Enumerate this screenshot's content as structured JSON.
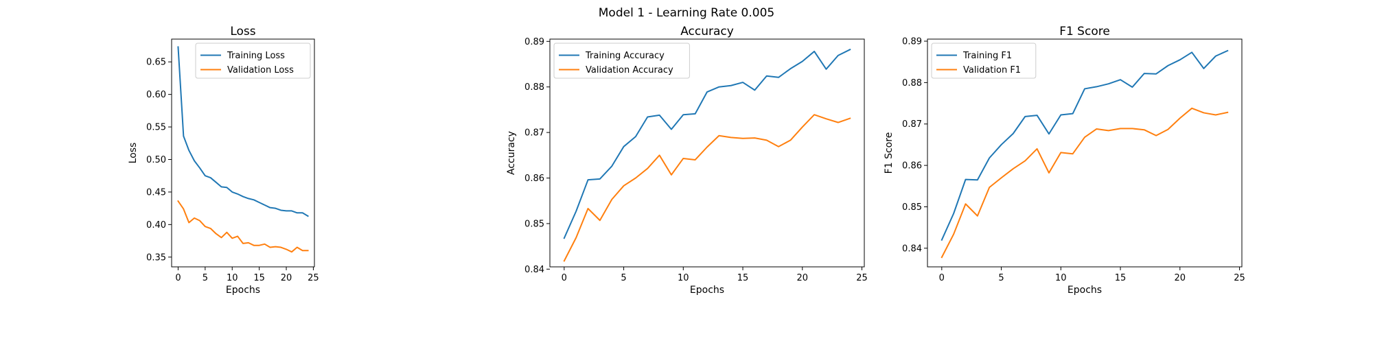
{
  "figure": {
    "suptitle": "Model 1 - Learning Rate 0.005"
  },
  "colors": {
    "training": "#1f77b4",
    "validation": "#ff7f0e",
    "axis": "#000000",
    "legend_border": "#cccccc"
  },
  "chart_data": [
    {
      "type": "line",
      "title": "Loss",
      "xlabel": "Epochs",
      "ylabel": "Loss",
      "xlim": [
        -1.2,
        25.2
      ],
      "ylim": [
        0.335,
        0.685
      ],
      "xticks": [
        0,
        5,
        10,
        15,
        20,
        25
      ],
      "yticks": [
        0.35,
        0.4,
        0.45,
        0.5,
        0.55,
        0.6,
        0.65
      ],
      "ytick_labels": [
        "0.35",
        "0.40",
        "0.45",
        "0.50",
        "0.55",
        "0.60",
        "0.65"
      ],
      "grid": false,
      "legend_position": "upper right",
      "x": [
        0,
        1,
        2,
        3,
        4,
        5,
        6,
        7,
        8,
        9,
        10,
        11,
        12,
        13,
        14,
        15,
        16,
        17,
        18,
        19,
        20,
        21,
        22,
        23,
        24
      ],
      "series": [
        {
          "name": "Training Loss",
          "color_key": "training",
          "values": [
            0.673,
            0.536,
            0.514,
            0.498,
            0.487,
            0.475,
            0.472,
            0.465,
            0.458,
            0.457,
            0.45,
            0.447,
            0.443,
            0.44,
            0.438,
            0.434,
            0.43,
            0.426,
            0.425,
            0.422,
            0.421,
            0.421,
            0.418,
            0.418,
            0.413
          ]
        },
        {
          "name": "Validation Loss",
          "color_key": "validation",
          "values": [
            0.436,
            0.424,
            0.403,
            0.41,
            0.406,
            0.397,
            0.394,
            0.386,
            0.38,
            0.388,
            0.379,
            0.382,
            0.371,
            0.372,
            0.368,
            0.368,
            0.37,
            0.365,
            0.366,
            0.365,
            0.362,
            0.358,
            0.365,
            0.36,
            0.36
          ]
        }
      ]
    },
    {
      "type": "line",
      "title": "Accuracy",
      "xlabel": "Epochs",
      "ylabel": "Accuracy",
      "xlim": [
        -1.2,
        25.2
      ],
      "ylim": [
        0.8405,
        0.8905
      ],
      "xticks": [
        0,
        5,
        10,
        15,
        20,
        25
      ],
      "yticks": [
        0.84,
        0.85,
        0.86,
        0.87,
        0.88,
        0.89
      ],
      "ytick_labels": [
        "0.84",
        "0.85",
        "0.86",
        "0.87",
        "0.88",
        "0.89"
      ],
      "grid": false,
      "legend_position": "upper left",
      "x": [
        0,
        1,
        2,
        3,
        4,
        5,
        6,
        7,
        8,
        9,
        10,
        11,
        12,
        13,
        14,
        15,
        16,
        17,
        18,
        19,
        20,
        21,
        22,
        23,
        24
      ],
      "series": [
        {
          "name": "Training Accuracy",
          "color_key": "training",
          "values": [
            0.8468,
            0.8527,
            0.8596,
            0.8598,
            0.8626,
            0.8669,
            0.8691,
            0.8734,
            0.8738,
            0.8707,
            0.8739,
            0.8741,
            0.8789,
            0.88,
            0.8803,
            0.881,
            0.8793,
            0.8824,
            0.8821,
            0.884,
            0.8856,
            0.8878,
            0.8839,
            0.8869,
            0.8882
          ]
        },
        {
          "name": "Validation Accuracy",
          "color_key": "validation",
          "values": [
            0.8418,
            0.8469,
            0.8533,
            0.8507,
            0.8553,
            0.8583,
            0.86,
            0.8621,
            0.865,
            0.8607,
            0.8643,
            0.864,
            0.8668,
            0.8693,
            0.8689,
            0.8687,
            0.8688,
            0.8683,
            0.8669,
            0.8683,
            0.8712,
            0.8739,
            0.873,
            0.8722,
            0.8731
          ]
        }
      ]
    },
    {
      "type": "line",
      "title": "F1 Score",
      "xlabel": "Epochs",
      "ylabel": "F1 Score",
      "xlim": [
        -1.2,
        25.2
      ],
      "ylim": [
        0.8355,
        0.8905
      ],
      "xticks": [
        0,
        5,
        10,
        15,
        20,
        25
      ],
      "yticks": [
        0.84,
        0.85,
        0.86,
        0.87,
        0.88,
        0.89
      ],
      "ytick_labels": [
        "0.84",
        "0.85",
        "0.86",
        "0.87",
        "0.88",
        "0.89"
      ],
      "grid": false,
      "legend_position": "upper left",
      "x": [
        0,
        1,
        2,
        3,
        4,
        5,
        6,
        7,
        8,
        9,
        10,
        11,
        12,
        13,
        14,
        15,
        16,
        17,
        18,
        19,
        20,
        21,
        22,
        23,
        24
      ],
      "series": [
        {
          "name": "Training F1",
          "color_key": "training",
          "values": [
            0.842,
            0.8484,
            0.8566,
            0.8565,
            0.8618,
            0.865,
            0.8677,
            0.8718,
            0.8721,
            0.8676,
            0.8722,
            0.8725,
            0.8785,
            0.879,
            0.8797,
            0.8807,
            0.8789,
            0.8822,
            0.8821,
            0.8841,
            0.8855,
            0.8873,
            0.8834,
            0.8864,
            0.8877
          ]
        },
        {
          "name": "Validation F1",
          "color_key": "validation",
          "values": [
            0.8378,
            0.8434,
            0.8507,
            0.8478,
            0.8547,
            0.857,
            0.8592,
            0.8611,
            0.864,
            0.8582,
            0.8631,
            0.8628,
            0.8668,
            0.8688,
            0.8684,
            0.8689,
            0.8689,
            0.8686,
            0.8672,
            0.8687,
            0.8714,
            0.8738,
            0.8727,
            0.8722,
            0.8728
          ]
        }
      ]
    }
  ]
}
